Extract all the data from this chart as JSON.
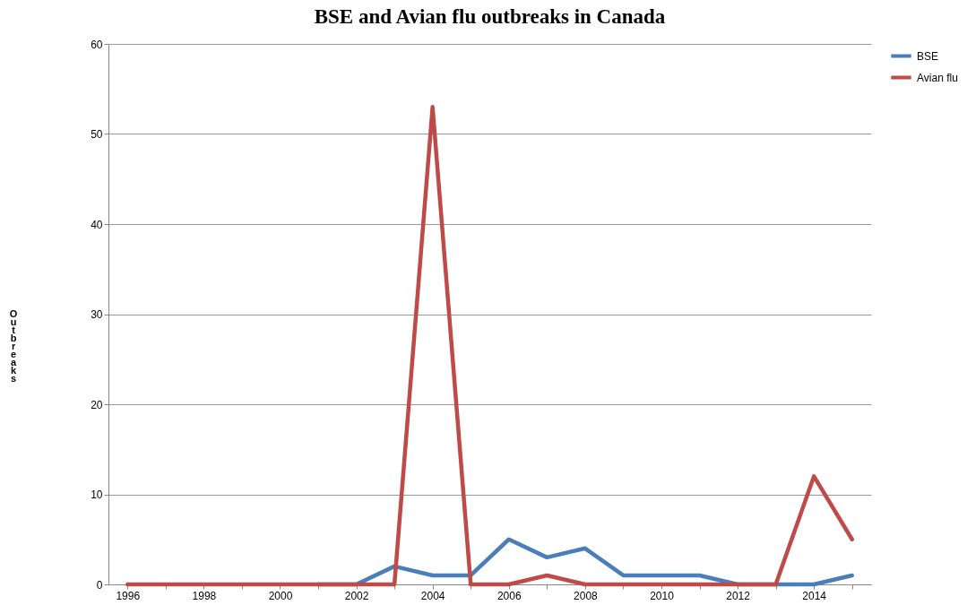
{
  "chart_data": {
    "type": "line",
    "title": "BSE and Avian flu outbreaks in Canada",
    "ylabel": "Outbreaks",
    "categories": [
      "1996",
      null,
      "1998",
      null,
      "2000",
      null,
      "2002",
      null,
      "2004",
      null,
      "2006",
      null,
      "2008",
      null,
      "2010",
      null,
      "2012",
      null,
      "2014",
      null
    ],
    "series": [
      {
        "name": "BSE",
        "color": "#4a7ebb",
        "values": [
          null,
          null,
          null,
          null,
          null,
          0,
          0,
          2,
          1,
          1,
          5,
          3,
          4,
          1,
          1,
          1,
          0,
          0,
          0,
          1
        ]
      },
      {
        "name": "Avian flu",
        "color": "#be4b48",
        "values": [
          0,
          0,
          0,
          0,
          0,
          0,
          0,
          0,
          53,
          0,
          0,
          1,
          0,
          0,
          0,
          0,
          0,
          0,
          12,
          5
        ]
      }
    ],
    "ylim": [
      0,
      60
    ],
    "yticks": [
      0,
      10,
      20,
      30,
      40,
      50,
      60
    ],
    "grid": "y",
    "legend": "right",
    "marker": "none",
    "line_style": "solid"
  }
}
